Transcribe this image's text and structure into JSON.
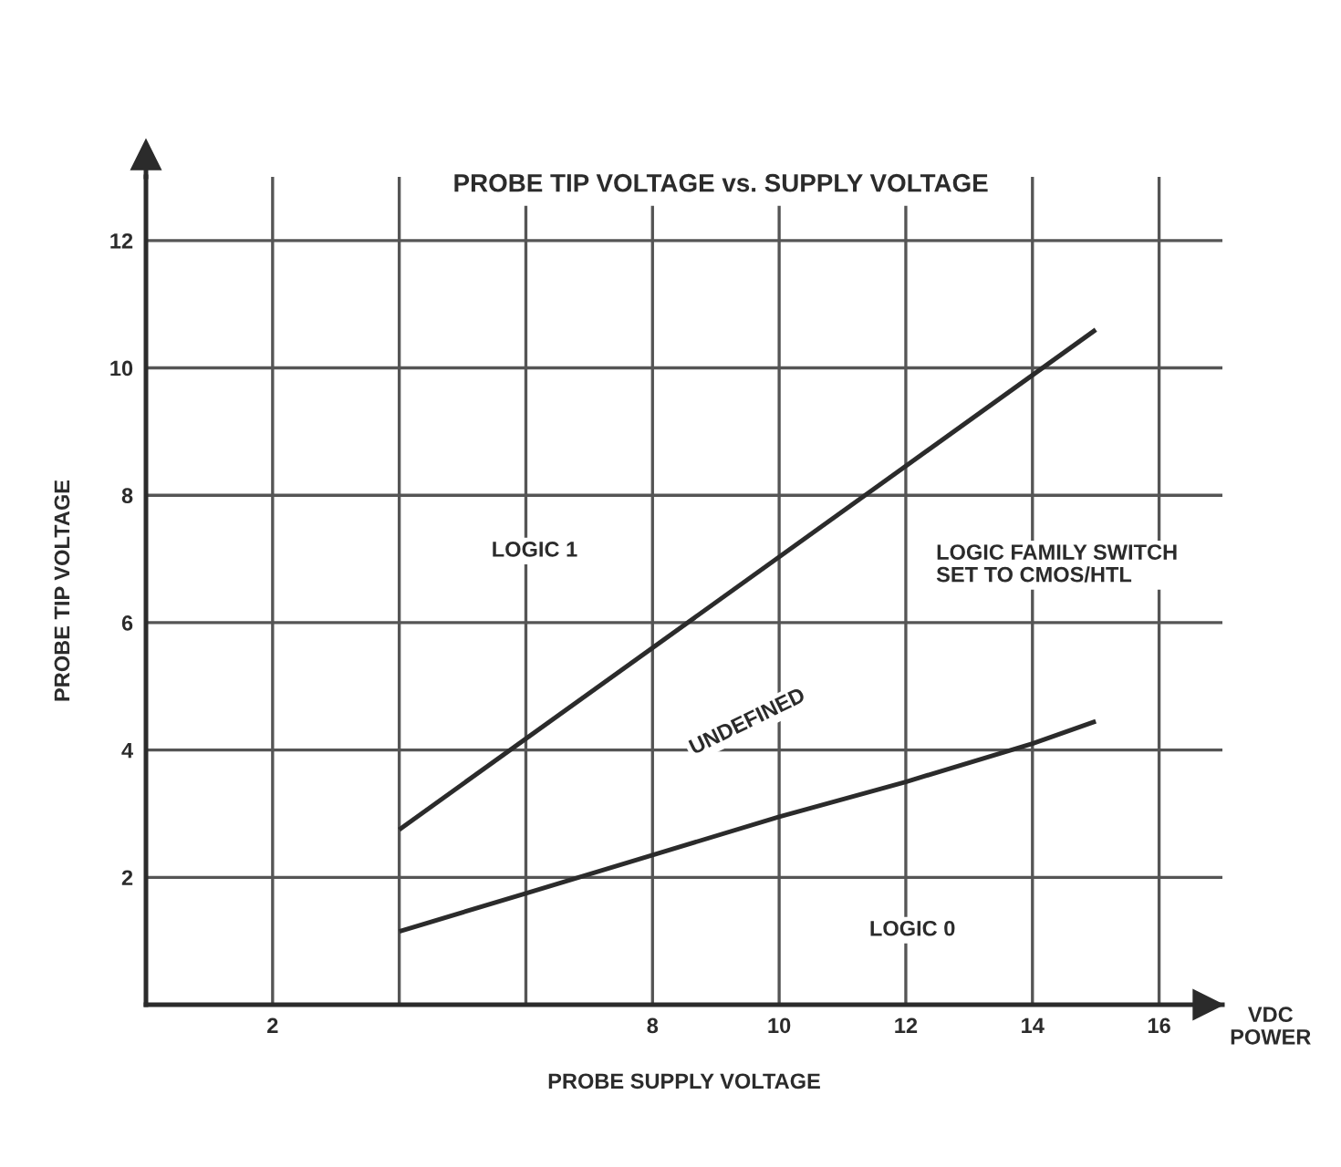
{
  "chart_data": {
    "type": "line",
    "title": "PROBE TIP VOLTAGE vs. SUPPLY VOLTAGE",
    "xlabel": "PROBE SUPPLY VOLTAGE",
    "ylabel": "PROBE TIP VOLTAGE",
    "xlim": [
      0,
      17
    ],
    "ylim": [
      0,
      13
    ],
    "xticks": [
      2,
      {
        "value": 4,
        "label": null
      },
      {
        "value": 6,
        "label": null
      },
      8,
      10,
      12,
      14,
      16
    ],
    "yticks": [
      2,
      4,
      6,
      8,
      10,
      12
    ],
    "grid": true,
    "line_style": "solid",
    "marker": "none",
    "series": [
      {
        "color": "#2b2b2b",
        "x": [
          4,
          15
        ],
        "values": [
          2.75,
          10.6
        ]
      },
      {
        "color": "#2b2b2b",
        "x": [
          4,
          6,
          8,
          10,
          12,
          14,
          15
        ],
        "values": [
          1.15,
          1.75,
          2.35,
          2.95,
          3.5,
          4.1,
          4.45
        ]
      }
    ],
    "annotations": [
      "LOGIC 1",
      "UNDEFINED",
      "LOGIC 0",
      "LOGIC FAMILY SWITCH\nSET TO CMOS/HTL",
      "VDC\nPOWER"
    ]
  }
}
